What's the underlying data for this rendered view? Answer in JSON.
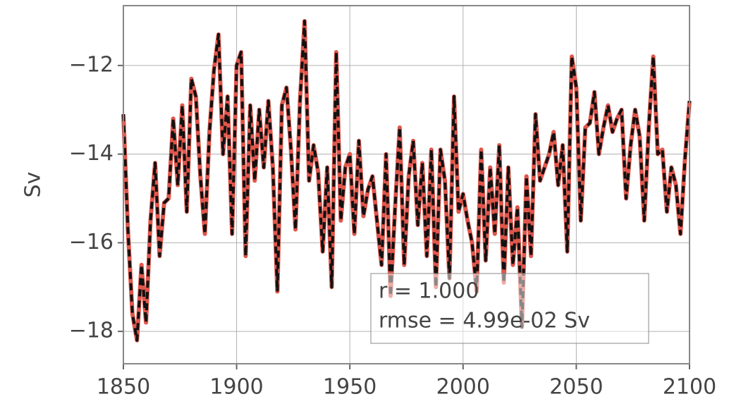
{
  "chart_data": {
    "type": "line",
    "ylabel": "Sv",
    "annotation": [
      "r = 1.000",
      "rmse = 4.99e-02 Sv"
    ],
    "x": [
      1850,
      1852,
      1854,
      1856,
      1858,
      1860,
      1862,
      1864,
      1866,
      1868,
      1870,
      1872,
      1874,
      1876,
      1878,
      1880,
      1882,
      1884,
      1886,
      1888,
      1890,
      1892,
      1894,
      1896,
      1898,
      1900,
      1902,
      1904,
      1906,
      1908,
      1910,
      1912,
      1914,
      1916,
      1918,
      1920,
      1922,
      1924,
      1926,
      1928,
      1930,
      1932,
      1934,
      1936,
      1938,
      1940,
      1942,
      1944,
      1946,
      1948,
      1950,
      1952,
      1954,
      1956,
      1958,
      1960,
      1962,
      1964,
      1966,
      1968,
      1970,
      1972,
      1974,
      1976,
      1978,
      1980,
      1982,
      1984,
      1986,
      1988,
      1990,
      1992,
      1994,
      1996,
      1998,
      2000,
      2002,
      2004,
      2006,
      2008,
      2010,
      2012,
      2014,
      2016,
      2018,
      2020,
      2022,
      2024,
      2026,
      2028,
      2030,
      2032,
      2034,
      2036,
      2038,
      2040,
      2042,
      2044,
      2046,
      2048,
      2050,
      2052,
      2054,
      2056,
      2058,
      2060,
      2062,
      2064,
      2066,
      2068,
      2070,
      2072,
      2074,
      2076,
      2078,
      2080,
      2082,
      2084,
      2086,
      2088,
      2090,
      2092,
      2094,
      2096,
      2098,
      2100
    ],
    "series": [
      {
        "color": "#e0564b",
        "dash": "solid",
        "width": 6,
        "values": [
          -13.1,
          -15.7,
          -17.6,
          -18.2,
          -16.5,
          -17.8,
          -15.5,
          -14.2,
          -16.3,
          -15.1,
          -15.0,
          -13.2,
          -14.7,
          -12.9,
          -15.3,
          -12.3,
          -12.7,
          -14.5,
          -15.8,
          -13.5,
          -12.1,
          -11.3,
          -14.0,
          -12.7,
          -15.8,
          -12.0,
          -11.7,
          -16.3,
          -12.9,
          -14.6,
          -13.0,
          -14.3,
          -12.8,
          -14.3,
          -17.1,
          -12.9,
          -12.5,
          -13.9,
          -15.7,
          -12.8,
          -11.0,
          -14.6,
          -13.8,
          -14.4,
          -16.2,
          -14.3,
          -17.0,
          -11.7,
          -15.5,
          -14.3,
          -14.0,
          -15.8,
          -13.7,
          -15.4,
          -14.8,
          -14.5,
          -15.5,
          -16.5,
          -14.0,
          -17.2,
          -15.2,
          -13.4,
          -16.5,
          -14.5,
          -13.7,
          -15.6,
          -14.2,
          -16.3,
          -13.9,
          -17.0,
          -13.9,
          -14.6,
          -16.8,
          -12.7,
          -15.3,
          -14.9,
          -15.5,
          -16.0,
          -17.1,
          -13.9,
          -16.4,
          -14.3,
          -15.8,
          -13.8,
          -16.9,
          -14.3,
          -16.5,
          -15.2,
          -17.9,
          -14.5,
          -16.3,
          -13.1,
          -14.6,
          -14.3,
          -14.0,
          -13.5,
          -14.7,
          -13.8,
          -16.2,
          -11.8,
          -12.5,
          -15.5,
          -13.4,
          -13.3,
          -12.6,
          -14.0,
          -13.4,
          -12.9,
          -13.5,
          -13.2,
          -13.0,
          -15.0,
          -13.8,
          -13.0,
          -13.6,
          -15.5,
          -13.4,
          -11.8,
          -14.0,
          -13.9,
          -15.3,
          -14.3,
          -14.7,
          -15.8,
          -14.1,
          -12.8
        ]
      },
      {
        "color": "#111111",
        "dash": "dashed",
        "width": 4,
        "values": [
          -13.1,
          -15.7,
          -17.6,
          -18.2,
          -16.5,
          -17.8,
          -15.5,
          -14.2,
          -16.3,
          -15.1,
          -15.0,
          -13.2,
          -14.7,
          -12.9,
          -15.3,
          -12.3,
          -12.7,
          -14.5,
          -15.8,
          -13.5,
          -12.1,
          -11.3,
          -14.0,
          -12.7,
          -15.8,
          -12.0,
          -11.7,
          -16.3,
          -12.9,
          -14.6,
          -13.0,
          -14.3,
          -12.8,
          -14.3,
          -17.1,
          -12.9,
          -12.5,
          -13.9,
          -15.7,
          -12.8,
          -11.0,
          -14.6,
          -13.8,
          -14.4,
          -16.2,
          -14.3,
          -17.0,
          -11.7,
          -15.5,
          -14.3,
          -14.0,
          -15.8,
          -13.7,
          -15.4,
          -14.8,
          -14.5,
          -15.5,
          -16.5,
          -14.0,
          -17.2,
          -15.2,
          -13.4,
          -16.5,
          -14.5,
          -13.7,
          -15.6,
          -14.2,
          -16.3,
          -13.9,
          -17.0,
          -13.9,
          -14.6,
          -16.8,
          -12.7,
          -15.3,
          -14.9,
          -15.5,
          -16.0,
          -17.1,
          -13.9,
          -16.4,
          -14.3,
          -15.8,
          -13.8,
          -16.9,
          -14.3,
          -16.5,
          -15.2,
          -17.9,
          -14.5,
          -16.3,
          -13.1,
          -14.6,
          -14.3,
          -14.0,
          -13.5,
          -14.7,
          -13.8,
          -16.2,
          -11.8,
          -12.5,
          -15.5,
          -13.4,
          -13.3,
          -12.6,
          -14.0,
          -13.4,
          -12.9,
          -13.5,
          -13.2,
          -13.0,
          -15.0,
          -13.8,
          -13.0,
          -13.6,
          -15.5,
          -13.4,
          -11.8,
          -14.0,
          -13.9,
          -15.3,
          -14.3,
          -14.7,
          -15.8,
          -14.1,
          -12.8
        ]
      }
    ],
    "xlim": [
      1850,
      2100
    ],
    "xticks": [
      1850,
      1900,
      1950,
      2000,
      2050,
      2100
    ],
    "ylim": [
      -18.73,
      -10.65
    ],
    "yticks": [
      {
        "value": -18,
        "label": "−18"
      },
      {
        "value": -16,
        "label": "−16"
      },
      {
        "value": -14,
        "label": "−14"
      },
      {
        "value": -12,
        "label": "−12"
      }
    ],
    "grid": true
  }
}
